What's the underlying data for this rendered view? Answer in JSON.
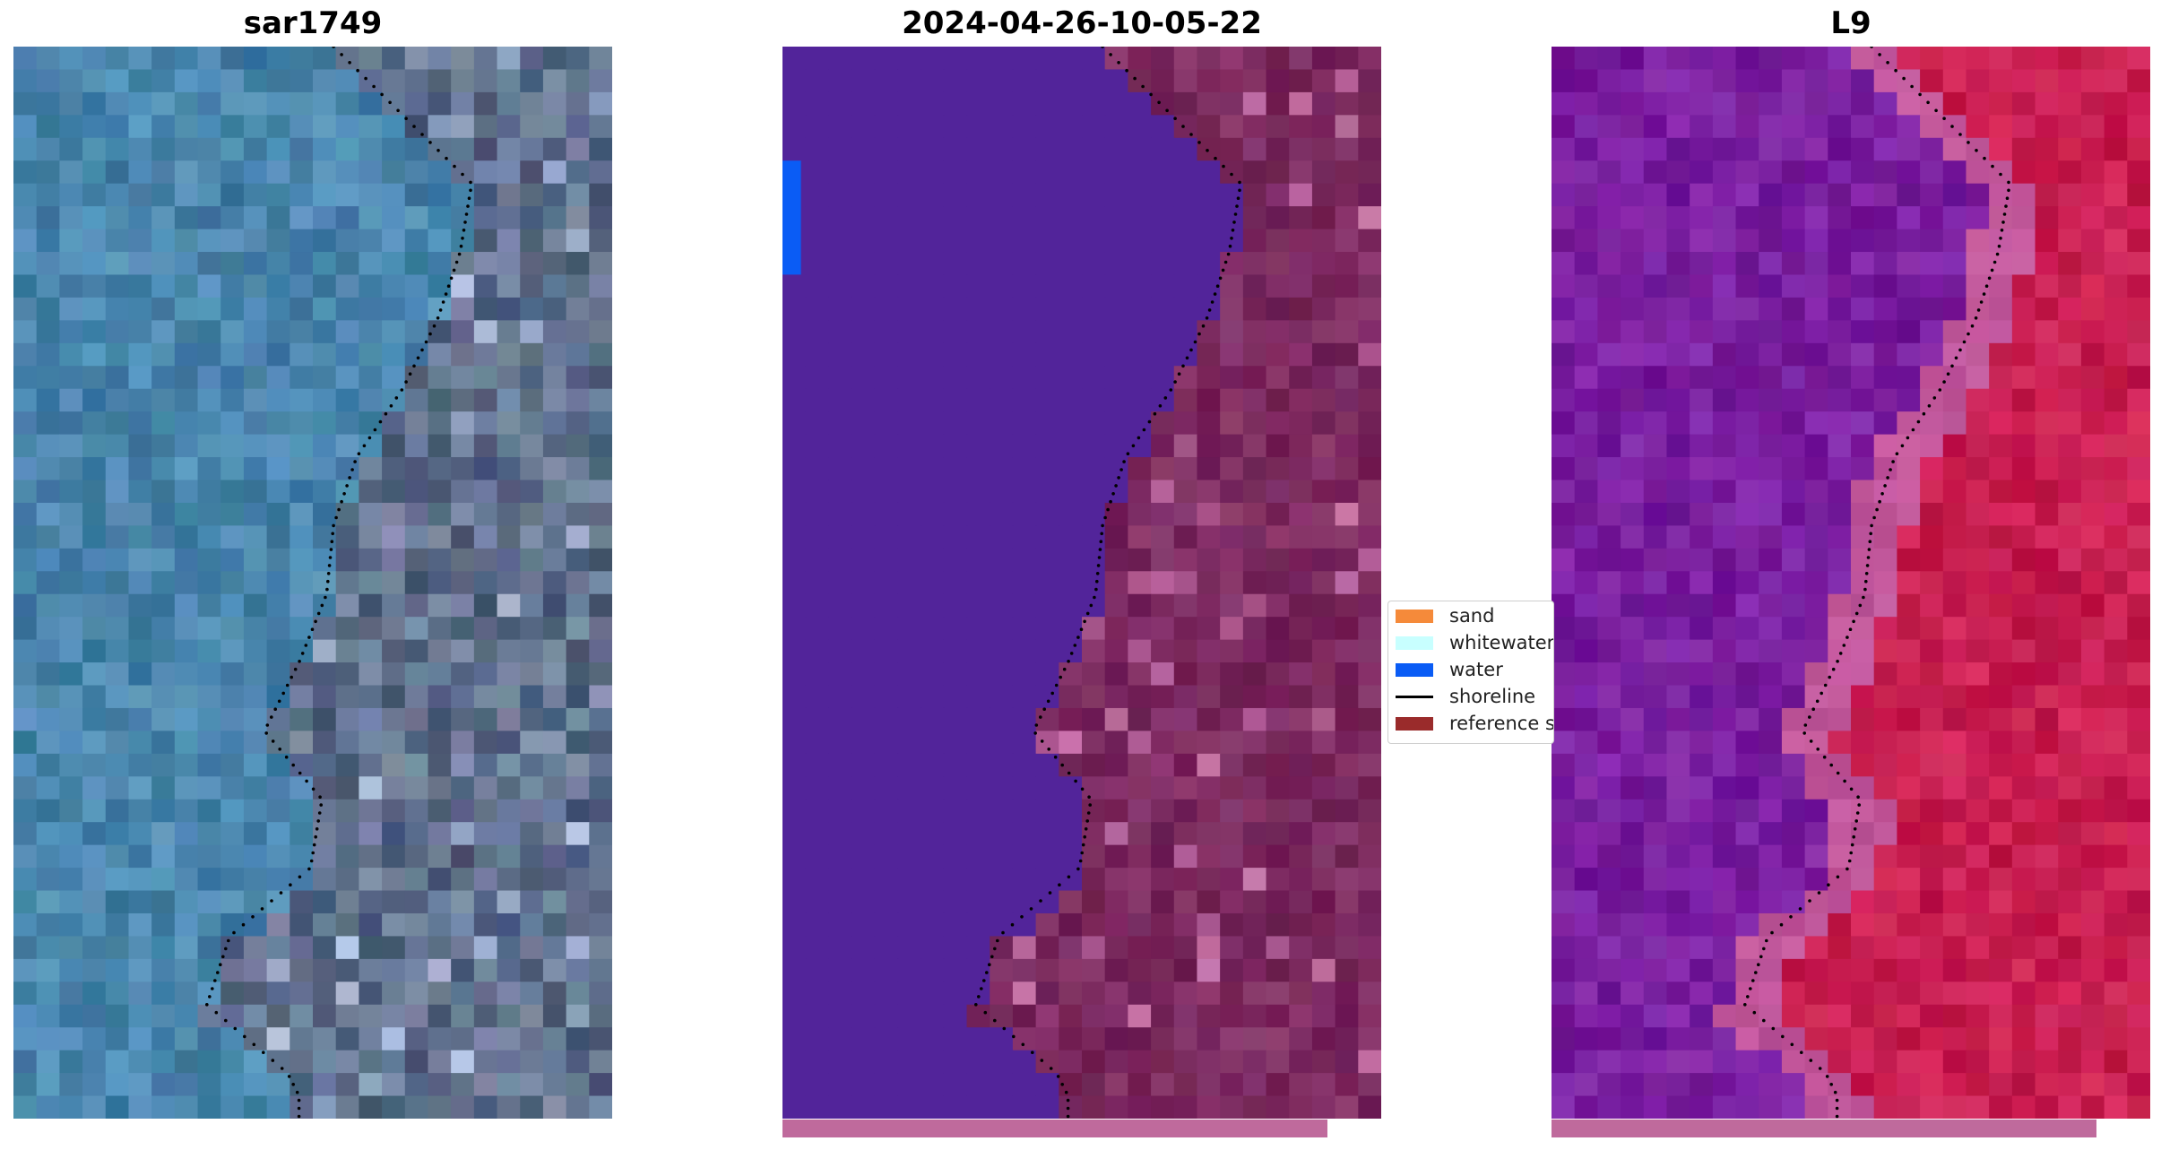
{
  "panels": [
    {
      "title": "sar1749",
      "palette": "rgb",
      "progress": null
    },
    {
      "title": "2024-04-26-10-05-22",
      "palette": "classified",
      "progress": 0.91
    },
    {
      "title": "L9",
      "palette": "falsecolor",
      "progress": 0.91
    }
  ],
  "legend": {
    "items": [
      {
        "label": "sand",
        "kind": "swatch",
        "color": "#f58a3a"
      },
      {
        "label": "whitewater",
        "kind": "swatch",
        "color": "#c8ffff"
      },
      {
        "label": "water",
        "kind": "swatch",
        "color": "#0a5cf5"
      },
      {
        "label": "shoreline",
        "kind": "line",
        "color": "#000000"
      },
      {
        "label": "reference shoreline",
        "kind": "swatch",
        "color": "#9a2b2b"
      }
    ]
  },
  "colors": {
    "rgb_water": "#4a86ad",
    "rgb_land": "#5f6f8c",
    "classified_water": "#52249a",
    "classified_land": "#7b2a5f",
    "false_water": "#7a1fa0",
    "false_land": "#c81e50",
    "progress_fill": "#bf6a9c"
  }
}
